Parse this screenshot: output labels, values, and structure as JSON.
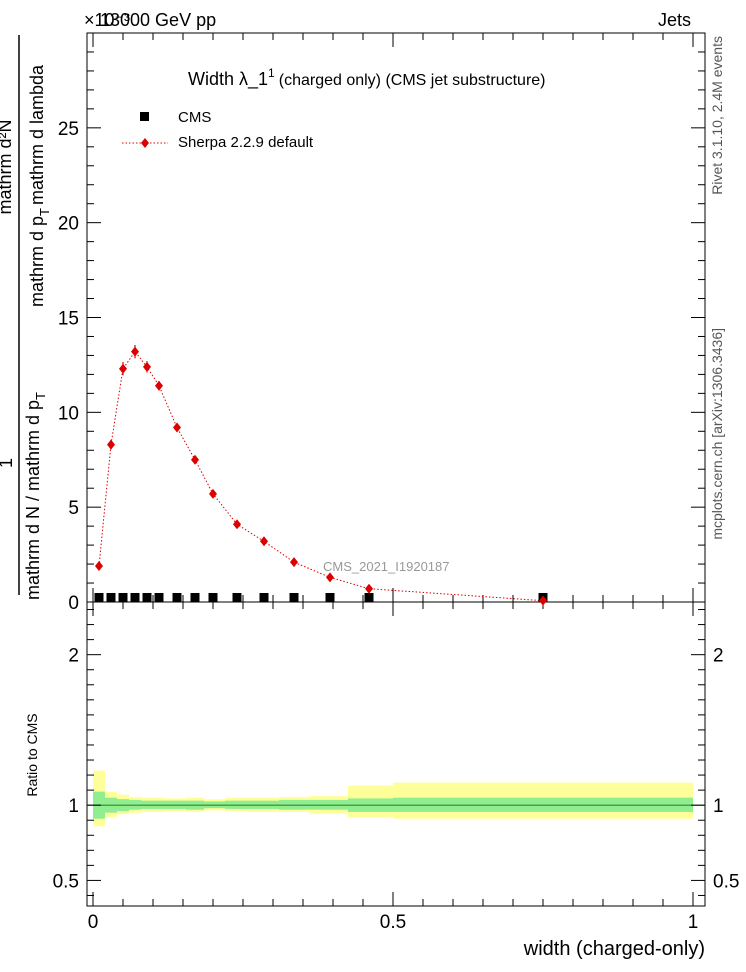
{
  "header": {
    "left": "13000 GeV pp",
    "right": "Jets",
    "exponent": "×10⁻³"
  },
  "side_labels": {
    "rivet": "Rivet 3.1.10,  2.4M events",
    "mcplots": "mcplots.cern.ch [arXiv:1306.3436]"
  },
  "watermark": "CMS_2021_I1920187",
  "chart_data": [
    {
      "type": "scatter",
      "title": "Width λ_1",
      "title_sup": "1",
      "title_tail": "(charged only) (CMS jet substructure)",
      "ylabel_numerator": "mathrm d²N",
      "ylabel_denominator_1": "mathrm d N / mathrm d p",
      "ylabel_sub_T1": "T",
      "ylabel_denominator_2": "mathrm d p",
      "ylabel_sub_T2": "T",
      "ylabel_denominator_3": "mathrm d lambda",
      "ylabel_one": "1",
      "ylabel_full": "1/(mathrm d N / mathrm d p_T) mathrm d²N/(mathrm d p_T mathrm d lambda)",
      "xlim": [
        0,
        1
      ],
      "ylim": [
        0,
        30
      ],
      "y_scale_note": "×10⁻³",
      "yticks": [
        0,
        5,
        10,
        15,
        20,
        25
      ],
      "yticklabels": [
        "0",
        "5",
        "10",
        "15",
        "20",
        "25"
      ],
      "legend_placement": "top-left",
      "series": [
        {
          "name": "CMS",
          "color": "#000000",
          "marker": "square",
          "x": [
            0.01,
            0.03,
            0.05,
            0.07,
            0.09,
            0.11,
            0.14,
            0.17,
            0.2,
            0.24,
            0.285,
            0.335,
            0.395,
            0.46,
            0.75
          ],
          "y": [
            0,
            0,
            0,
            0,
            0,
            0,
            0,
            0,
            0,
            0,
            0,
            0,
            0,
            0,
            0
          ]
        },
        {
          "name": "Sherpa 2.2.9 default",
          "color": "#dd0000",
          "marker": "diamond",
          "line": "dotted",
          "x": [
            0.01,
            0.03,
            0.05,
            0.07,
            0.09,
            0.11,
            0.14,
            0.17,
            0.2,
            0.24,
            0.285,
            0.335,
            0.395,
            0.46,
            0.75
          ],
          "y": [
            1.9,
            8.3,
            12.3,
            13.2,
            12.4,
            11.4,
            9.2,
            7.5,
            5.7,
            4.1,
            3.2,
            2.1,
            1.3,
            0.7,
            0.07
          ],
          "yerr": [
            0.15,
            0.25,
            0.35,
            0.35,
            0.3,
            0.25,
            0.2,
            0.15,
            0.12,
            0.1,
            0.08,
            0.06,
            0.05,
            0.04,
            0.02
          ]
        }
      ]
    },
    {
      "type": "area",
      "ylabel": "Ratio to CMS",
      "xlabel": "width (charged-only)",
      "xlim": [
        -0.01,
        1.02
      ],
      "ylim": [
        0.33,
        2.35
      ],
      "xticks": [
        0,
        0.5,
        1
      ],
      "xticklabels": [
        "0",
        "0.5",
        "1"
      ],
      "yticks": [
        0.5,
        1,
        2
      ],
      "yticklabels": [
        "0.5",
        "1",
        "2"
      ],
      "bands": {
        "edges": [
          0,
          0.02,
          0.04,
          0.06,
          0.08,
          0.1,
          0.12,
          0.155,
          0.185,
          0.22,
          0.26,
          0.31,
          0.36,
          0.425,
          0.5,
          1.0
        ],
        "inner_color": "#90ee90",
        "outer_color": "#ffff99",
        "inner_lo": [
          0.91,
          0.95,
          0.96,
          0.97,
          0.975,
          0.975,
          0.975,
          0.97,
          0.98,
          0.975,
          0.975,
          0.97,
          0.97,
          0.955,
          0.955
        ],
        "inner_hi": [
          1.09,
          1.05,
          1.04,
          1.035,
          1.03,
          1.03,
          1.03,
          1.03,
          1.025,
          1.03,
          1.03,
          1.035,
          1.035,
          1.045,
          1.05
        ],
        "outer_lo": [
          0.86,
          0.92,
          0.94,
          0.95,
          0.955,
          0.955,
          0.96,
          0.955,
          0.965,
          0.96,
          0.955,
          0.955,
          0.945,
          0.92,
          0.91
        ],
        "outer_hi": [
          1.23,
          1.09,
          1.07,
          1.055,
          1.05,
          1.05,
          1.045,
          1.05,
          1.04,
          1.05,
          1.05,
          1.055,
          1.06,
          1.13,
          1.15
        ]
      },
      "ratio_line": 1
    }
  ]
}
